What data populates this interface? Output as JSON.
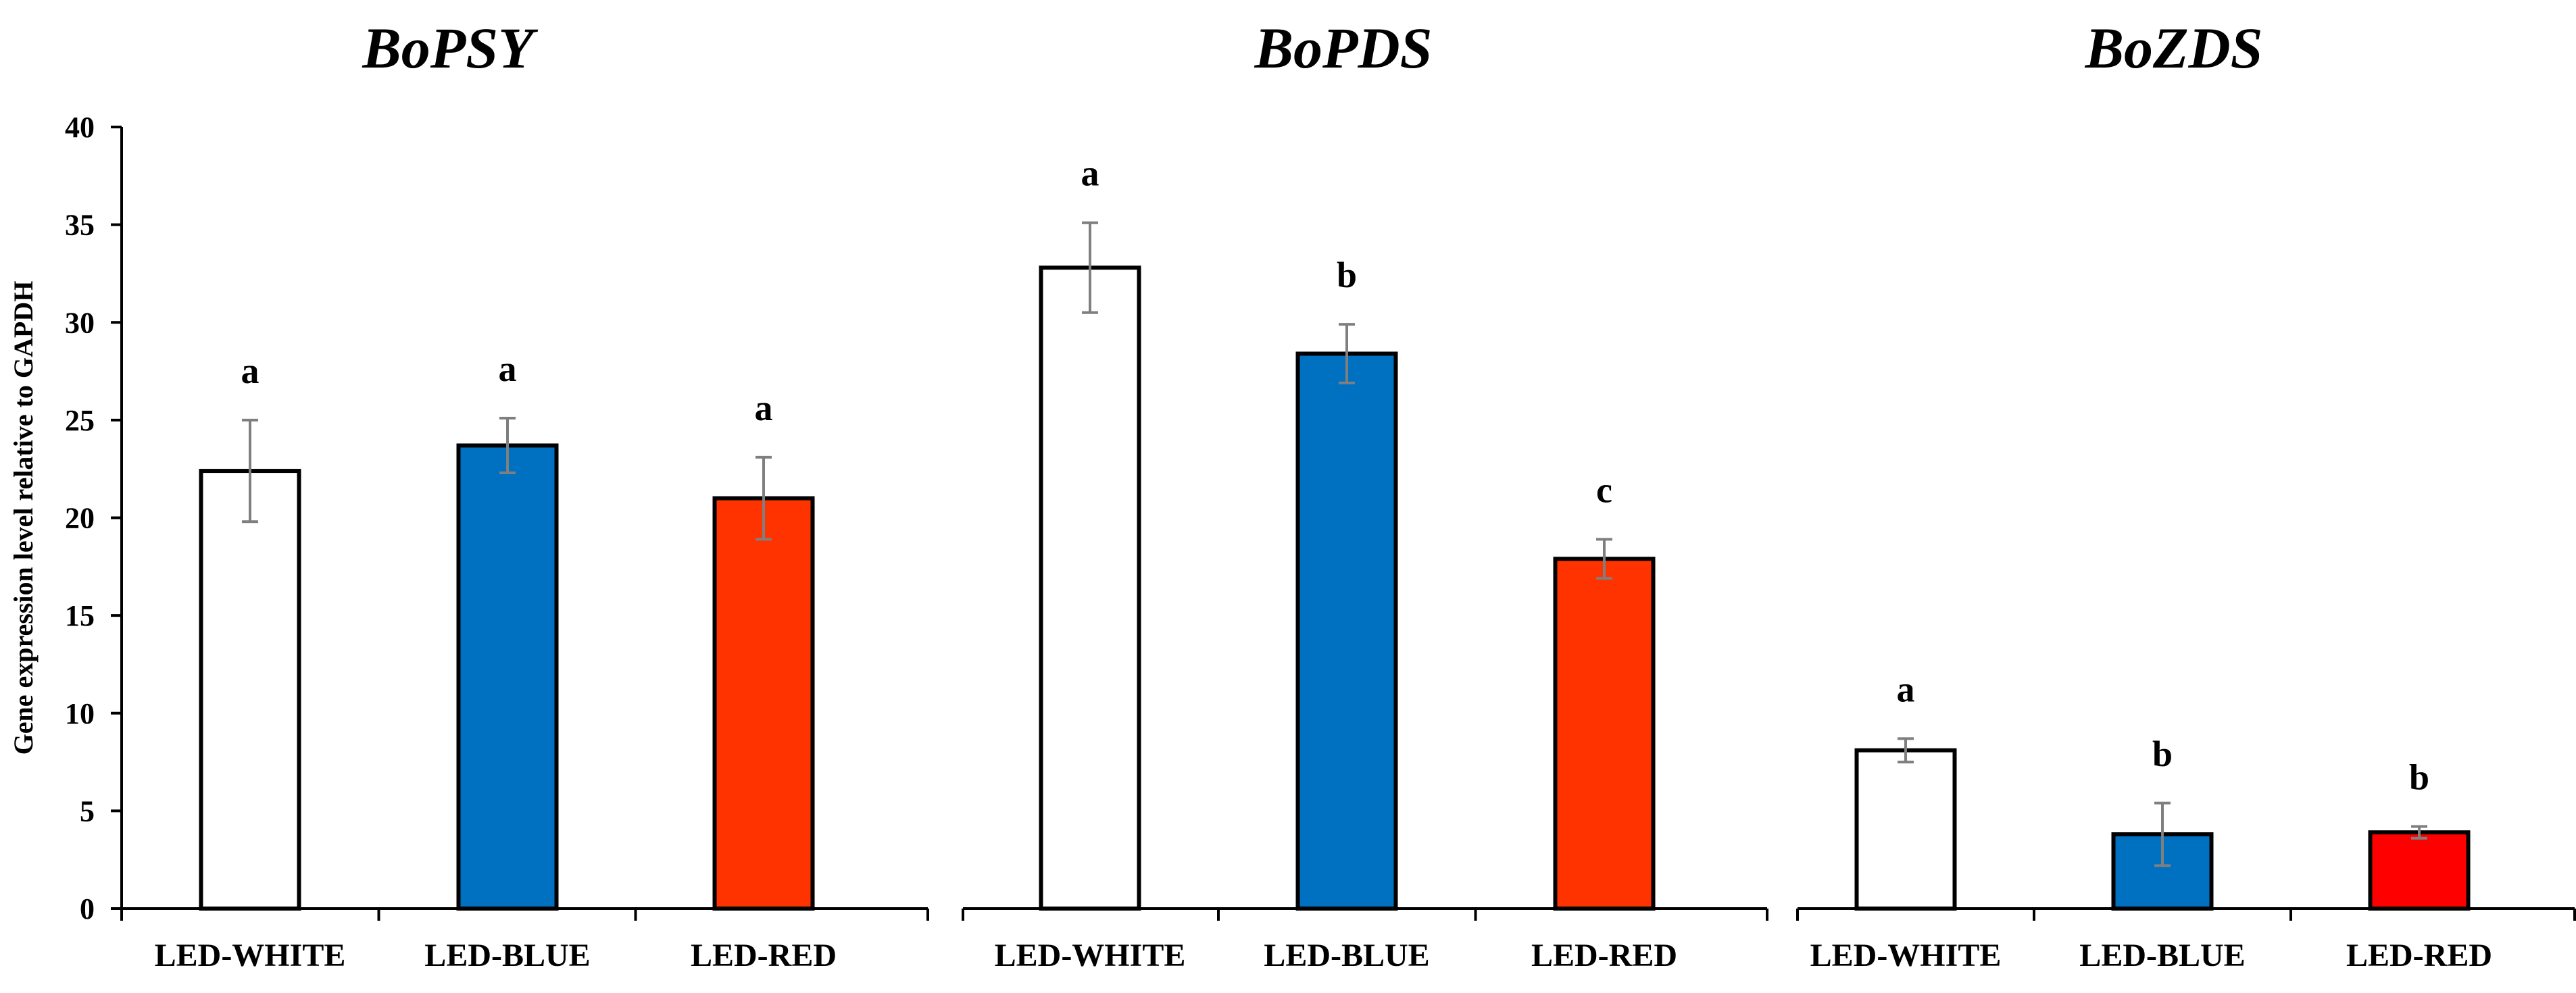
{
  "chart_data": {
    "type": "bar",
    "ylabel": "Gene expression level relative to GAPDH",
    "ylim": [
      0,
      40
    ],
    "yticks": [
      0,
      5,
      10,
      15,
      20,
      25,
      30,
      35,
      40
    ],
    "categories": [
      "LED-WHITE",
      "LED-BLUE",
      "LED-RED"
    ],
    "panels": [
      {
        "title": "BoPSY",
        "values": [
          22.4,
          23.7,
          21.0
        ],
        "errors": [
          2.6,
          1.4,
          2.1
        ],
        "letters": [
          "a",
          "a",
          "a"
        ],
        "colors": [
          "#ffffff",
          "#0070c0",
          "#ff3300"
        ]
      },
      {
        "title": "BoPDS",
        "values": [
          32.8,
          28.4,
          17.9
        ],
        "errors": [
          2.3,
          1.5,
          1.0
        ],
        "letters": [
          "a",
          "b",
          "c"
        ],
        "colors": [
          "#ffffff",
          "#0070c0",
          "#ff3300"
        ]
      },
      {
        "title": "BoZDS",
        "values": [
          8.1,
          3.8,
          3.9
        ],
        "errors": [
          0.6,
          1.6,
          0.3
        ],
        "letters": [
          "a",
          "b",
          "b"
        ],
        "colors": [
          "#ffffff",
          "#0070c0",
          "#ff0000"
        ]
      }
    ]
  }
}
